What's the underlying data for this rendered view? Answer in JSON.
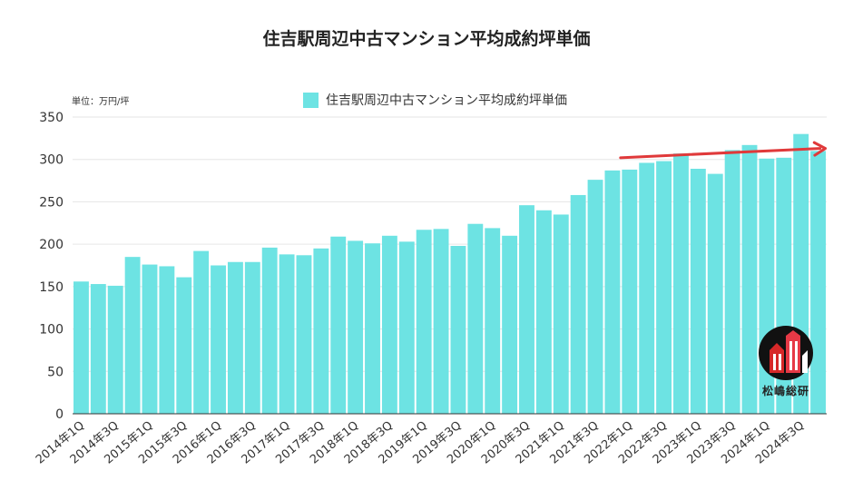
{
  "title": "住吉駅周辺中古マンション平均成約坪単価",
  "unit_label": "単位：万円/坪",
  "colors": {
    "bar": "#6de3e3",
    "trend_arrow": "#e0393a",
    "grid": "#e6e6e6",
    "axis": "#333333"
  },
  "logo": {
    "text": "松嶋総研",
    "icon": "building-logo-icon"
  },
  "chart_data": {
    "type": "bar",
    "title": "住吉駅周辺中古マンション平均成約坪単価",
    "ylim": [
      0,
      350
    ],
    "yticks": [
      0,
      50,
      100,
      150,
      200,
      250,
      300,
      350
    ],
    "grid": true,
    "legend_position": "top",
    "categories": [
      "2014年1Q",
      "2014年2Q",
      "2014年3Q",
      "2014年4Q",
      "2015年1Q",
      "2015年2Q",
      "2015年3Q",
      "2015年4Q",
      "2016年1Q",
      "2016年2Q",
      "2016年3Q",
      "2016年4Q",
      "2017年1Q",
      "2017年2Q",
      "2017年3Q",
      "2017年4Q",
      "2018年1Q",
      "2018年2Q",
      "2018年3Q",
      "2018年4Q",
      "2019年1Q",
      "2019年2Q",
      "2019年3Q",
      "2019年4Q",
      "2020年1Q",
      "2020年2Q",
      "2020年3Q",
      "2020年4Q",
      "2021年1Q",
      "2021年2Q",
      "2021年3Q",
      "2021年4Q",
      "2022年1Q",
      "2022年2Q",
      "2022年3Q",
      "2022年4Q",
      "2023年1Q",
      "2023年2Q",
      "2023年3Q",
      "2023年4Q",
      "2024年1Q",
      "2024年2Q",
      "2024年3Q",
      "2024年4Q"
    ],
    "tick_labels": [
      "2014年1Q",
      "2014年3Q",
      "2015年1Q",
      "2015年3Q",
      "2016年1Q",
      "2016年3Q",
      "2017年1Q",
      "2017年3Q",
      "2018年1Q",
      "2018年3Q",
      "2019年1Q",
      "2019年3Q",
      "2020年1Q",
      "2020年3Q",
      "2021年1Q",
      "2021年3Q",
      "2022年1Q",
      "2022年3Q",
      "2023年1Q",
      "2023年3Q",
      "2024年1Q",
      "2024年3Q"
    ],
    "series": [
      {
        "name": "住吉駅周辺中古マンション平均成約坪単価",
        "values": [
          156,
          153,
          151,
          185,
          176,
          174,
          161,
          192,
          175,
          179,
          179,
          196,
          188,
          187,
          195,
          209,
          204,
          201,
          210,
          203,
          217,
          218,
          198,
          224,
          219,
          210,
          246,
          240,
          235,
          258,
          276,
          287,
          288,
          296,
          298,
          307,
          289,
          283,
          311,
          317,
          301,
          302,
          330,
          310
        ]
      }
    ],
    "annotations": [
      {
        "type": "trend-arrow",
        "from_category": "2022年1Q",
        "from_value": 302,
        "to_category": "2024年4Q",
        "to_value": 313
      }
    ]
  }
}
